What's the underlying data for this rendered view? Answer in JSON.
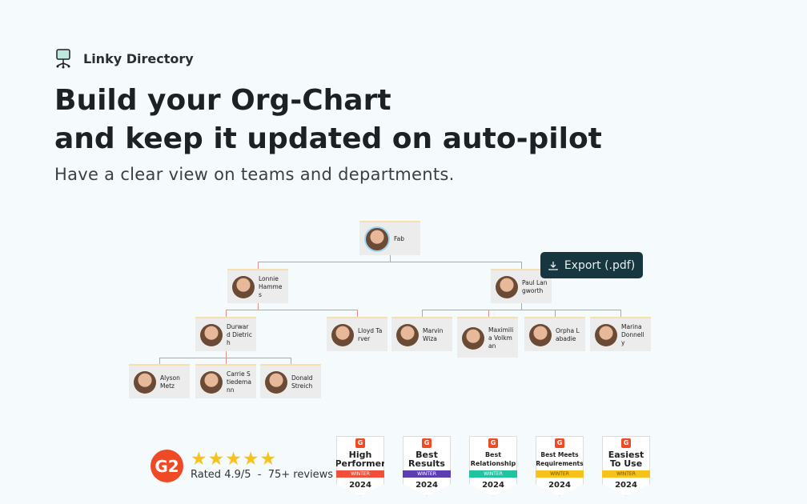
{
  "brand": {
    "name": "Linky Directory",
    "icon": "org-folder-icon"
  },
  "hero": {
    "title_line1": "Build your Org-Chart",
    "title_line2": "and keep it updated on auto-pilot",
    "subtitle": "Have a clear view on teams and departments."
  },
  "export_label": "Export (.pdf)",
  "org": {
    "fab": "Fab",
    "lonnie": "Lonnie Hammes",
    "paul": "Paul Langworth",
    "durward": "Durward Dietrich",
    "lloyd": "Lloyd Tarver",
    "marvin": "Marvin Wiza",
    "maximilia": "Maximilia Volkman",
    "orpha": "Orpha Labadie",
    "marina": "Marina Donnelly",
    "alyson": "Alyson Metz",
    "carrie": "Carrie Stiedemann",
    "donald": "Donald Streich"
  },
  "rating": {
    "logo": "G2",
    "stars": 5,
    "text": "Rated 4.9/5  -  75+ reviews"
  },
  "badges": [
    {
      "title": "High Performer",
      "season": "WINTER",
      "year": "2024",
      "color": "#f0503a"
    },
    {
      "title": "Best Results",
      "season": "WINTER",
      "year": "2024",
      "color": "#5b3fb0"
    },
    {
      "title": "Best Relationship",
      "season": "WINTER",
      "year": "2024",
      "color": "#22c3a0"
    },
    {
      "title": "Best Meets Requirements",
      "season": "WINTER",
      "year": "2024",
      "color": "#f8c21c"
    },
    {
      "title": "Easiest To Use",
      "season": "WINTER",
      "year": "2024",
      "color": "#f8c21c"
    }
  ]
}
